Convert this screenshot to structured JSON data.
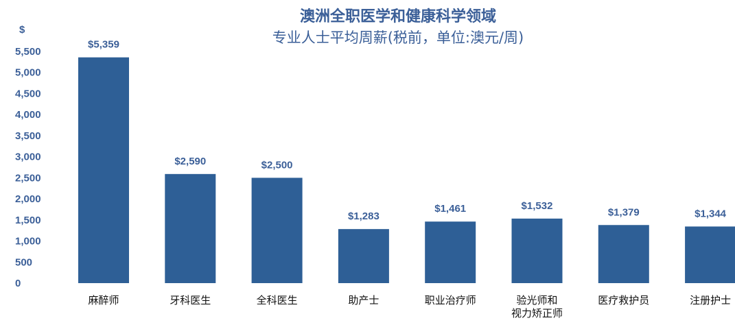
{
  "chart_data": {
    "type": "bar",
    "title": [
      "澳洲全职医学和健康科学领域",
      "专业人士平均周薪(税前，单位:澳元/周)"
    ],
    "ylabel": "$",
    "ylim": [
      0,
      5500
    ],
    "yticks": [
      "0",
      "500",
      "1,000",
      "1,500",
      "2,000",
      "2,500",
      "3,000",
      "3,500",
      "4,000",
      "4,500",
      "5,000",
      "5,500"
    ],
    "categories": [
      [
        "麻醉师"
      ],
      [
        "牙科医生"
      ],
      [
        "全科医生"
      ],
      [
        "助产士"
      ],
      [
        "职业治疗师"
      ],
      [
        "验光师和",
        "视力矫正师"
      ],
      [
        "医疗救护员"
      ],
      [
        "注册护士"
      ]
    ],
    "values": [
      5359,
      2590,
      2500,
      1283,
      1461,
      1532,
      1379,
      1344
    ],
    "value_labels": [
      "$5,359",
      "$2,590",
      "$2,500",
      "$1,283",
      "$1,461",
      "$1,532",
      "$1,379",
      "$1,344"
    ],
    "colors": {
      "bar": "#2e5f96",
      "text": "#3b5f98"
    },
    "grid": false,
    "legend": "none"
  }
}
